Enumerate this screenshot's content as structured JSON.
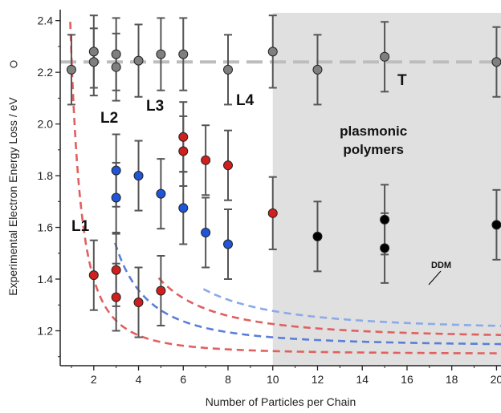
{
  "chart_data": {
    "type": "scatter",
    "xlabel": "Number of Particles per Chain",
    "ylabel": "Experimental Electron Energy Loss / eV",
    "xlim": [
      0.5,
      20.2
    ],
    "ylim": [
      1.065,
      2.43
    ],
    "x_ticks": [
      2,
      4,
      6,
      8,
      10,
      12,
      14,
      16,
      18,
      20
    ],
    "y_ticks": [
      1.2,
      1.4,
      1.6,
      1.8,
      2.0,
      2.2,
      2.4
    ],
    "shaded_region": {
      "x_from": 10,
      "x_to": 20.2,
      "label_lines": [
        "plasmonic",
        "polymers"
      ]
    },
    "colors": {
      "T": "#7f7f7f",
      "L1": "#d01f1f",
      "L2": "#1f55d8",
      "L3": "#d01f1f",
      "L4": "#d01f1f",
      "plasmonic": "#000000",
      "shade": "#e0e0e0",
      "errorbar": "#555555",
      "curve_red": "#e06060",
      "curve_blue": "#5a7fd8",
      "curve_lightblue": "#8aaae8",
      "T_line": "#bdbdbd"
    },
    "series": [
      {
        "name": "T",
        "points": [
          {
            "x": 1,
            "y": 2.21,
            "err": 0.135
          },
          {
            "x": 2,
            "y": 2.28,
            "err": 0.14
          },
          {
            "x": 2,
            "y": 2.24,
            "err": 0.13
          },
          {
            "x": 3,
            "y": 2.27,
            "err": 0.14
          },
          {
            "x": 3,
            "y": 2.22,
            "err": 0.13
          },
          {
            "x": 4,
            "y": 2.245,
            "err": 0.14
          },
          {
            "x": 5,
            "y": 2.27,
            "err": 0.14
          },
          {
            "x": 6,
            "y": 2.27,
            "err": 0.14
          },
          {
            "x": 8,
            "y": 2.21,
            "err": 0.135
          },
          {
            "x": 10,
            "y": 2.28,
            "err": 0.14
          },
          {
            "x": 12,
            "y": 2.21,
            "err": 0.135
          },
          {
            "x": 15,
            "y": 2.26,
            "err": 0.135
          },
          {
            "x": 20,
            "y": 2.24,
            "err": 0.135
          }
        ]
      },
      {
        "name": "L1",
        "points": [
          {
            "x": 2,
            "y": 1.415,
            "err": 0.135
          },
          {
            "x": 3,
            "y": 1.435,
            "err": 0.14
          },
          {
            "x": 3,
            "y": 1.33,
            "err": 0.13
          },
          {
            "x": 4,
            "y": 1.31,
            "err": 0.135
          },
          {
            "x": 5,
            "y": 1.355,
            "err": 0.135
          }
        ]
      },
      {
        "name": "L2",
        "points": [
          {
            "x": 3,
            "y": 1.82,
            "err": 0.14
          },
          {
            "x": 3,
            "y": 1.715,
            "err": 0.135
          },
          {
            "x": 4,
            "y": 1.8,
            "err": 0.135
          },
          {
            "x": 5,
            "y": 1.73,
            "err": 0.135
          },
          {
            "x": 6,
            "y": 1.675,
            "err": 0.14
          },
          {
            "x": 7,
            "y": 1.58,
            "err": 0.135
          },
          {
            "x": 8,
            "y": 1.535,
            "err": 0.135
          }
        ]
      },
      {
        "name": "L3",
        "points": [
          {
            "x": 6,
            "y": 1.95,
            "err": 0.135
          },
          {
            "x": 6,
            "y": 1.895,
            "err": 0.135
          },
          {
            "x": 7,
            "y": 1.86,
            "err": 0.135
          },
          {
            "x": 8,
            "y": 1.84,
            "err": 0.135
          }
        ]
      },
      {
        "name": "L4",
        "points": [
          {
            "x": 10,
            "y": 1.655,
            "err": 0.14
          }
        ]
      },
      {
        "name": "plasmonic",
        "points": [
          {
            "x": 12,
            "y": 1.565,
            "err": 0.135
          },
          {
            "x": 15,
            "y": 1.63,
            "err": 0.135
          },
          {
            "x": 15,
            "y": 1.52,
            "err": 0.135
          },
          {
            "x": 20,
            "y": 1.61,
            "err": 0.135
          }
        ]
      }
    ],
    "T_level": 2.24,
    "curves": [
      {
        "label": "L1",
        "color_key": "curve_red",
        "x_start": 0.95,
        "E_inf": 1.11,
        "A": 1.16
      },
      {
        "label": "L2",
        "color_key": "curve_blue",
        "x_start": 2.95,
        "E_inf": 1.14,
        "A": 3.48
      },
      {
        "label": "L3",
        "color_key": "curve_red",
        "x_start": 4.9,
        "E_inf": 1.17,
        "A": 5.63
      },
      {
        "label": "L4",
        "color_key": "curve_lightblue",
        "x_start": 6.9,
        "E_inf": 1.2,
        "A": 7.7
      }
    ],
    "annotations": {
      "L1": "L1",
      "L2": "L2",
      "L3": "L3",
      "L4": "L4",
      "T": "T",
      "DDM": "DDM"
    }
  }
}
